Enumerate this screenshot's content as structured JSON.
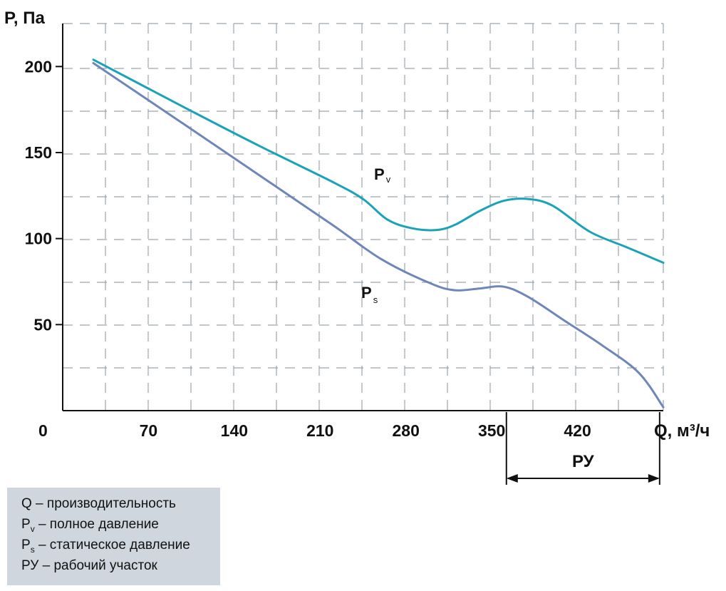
{
  "chart_data": {
    "type": "line",
    "xlabel": "Q, м³/ч",
    "ylabel": "P, Па",
    "xlim": [
      0,
      490
    ],
    "ylim": [
      0,
      225
    ],
    "x_ticks": [
      70,
      140,
      210,
      280,
      350,
      420
    ],
    "x_tick_labels": [
      "70",
      "140",
      "210",
      "280",
      "350",
      "420"
    ],
    "origin_label": "0",
    "y_ticks": [
      50,
      100,
      150,
      200
    ],
    "y_tick_labels": [
      "50",
      "100",
      "150",
      "200"
    ],
    "grid": "dashed",
    "series": [
      {
        "name": "Pv",
        "label_main": "P",
        "label_sub": "v",
        "color": "#1aa3b8",
        "x": [
          25,
          100,
          160,
          220,
          245,
          265,
          285,
          305,
          320,
          340,
          360,
          380,
          400,
          430,
          460,
          490
        ],
        "y": [
          204,
          176,
          154,
          133,
          123,
          111,
          106,
          105,
          108,
          116,
          122,
          123,
          119,
          104,
          95,
          86
        ]
      },
      {
        "name": "Ps",
        "label_main": "P",
        "label_sub": "s",
        "color": "#6f86b8",
        "x": [
          25,
          100,
          160,
          220,
          260,
          300,
          320,
          340,
          360,
          380,
          410,
          440,
          470,
          490
        ],
        "y": [
          202,
          166,
          137,
          108,
          88,
          74,
          70,
          71,
          72,
          66,
          52,
          38,
          22,
          2
        ]
      }
    ],
    "region": {
      "label": "РУ",
      "from": 362,
      "to": 487
    }
  },
  "legend": {
    "q_line": "Q – производительность",
    "pv_main": "P",
    "pv_sub": "v",
    "pv_rest": " – полное давление",
    "ps_main": "P",
    "ps_sub": "s",
    "ps_rest": " – статическое давление",
    "ru_line": "РУ – рабочий участок"
  }
}
